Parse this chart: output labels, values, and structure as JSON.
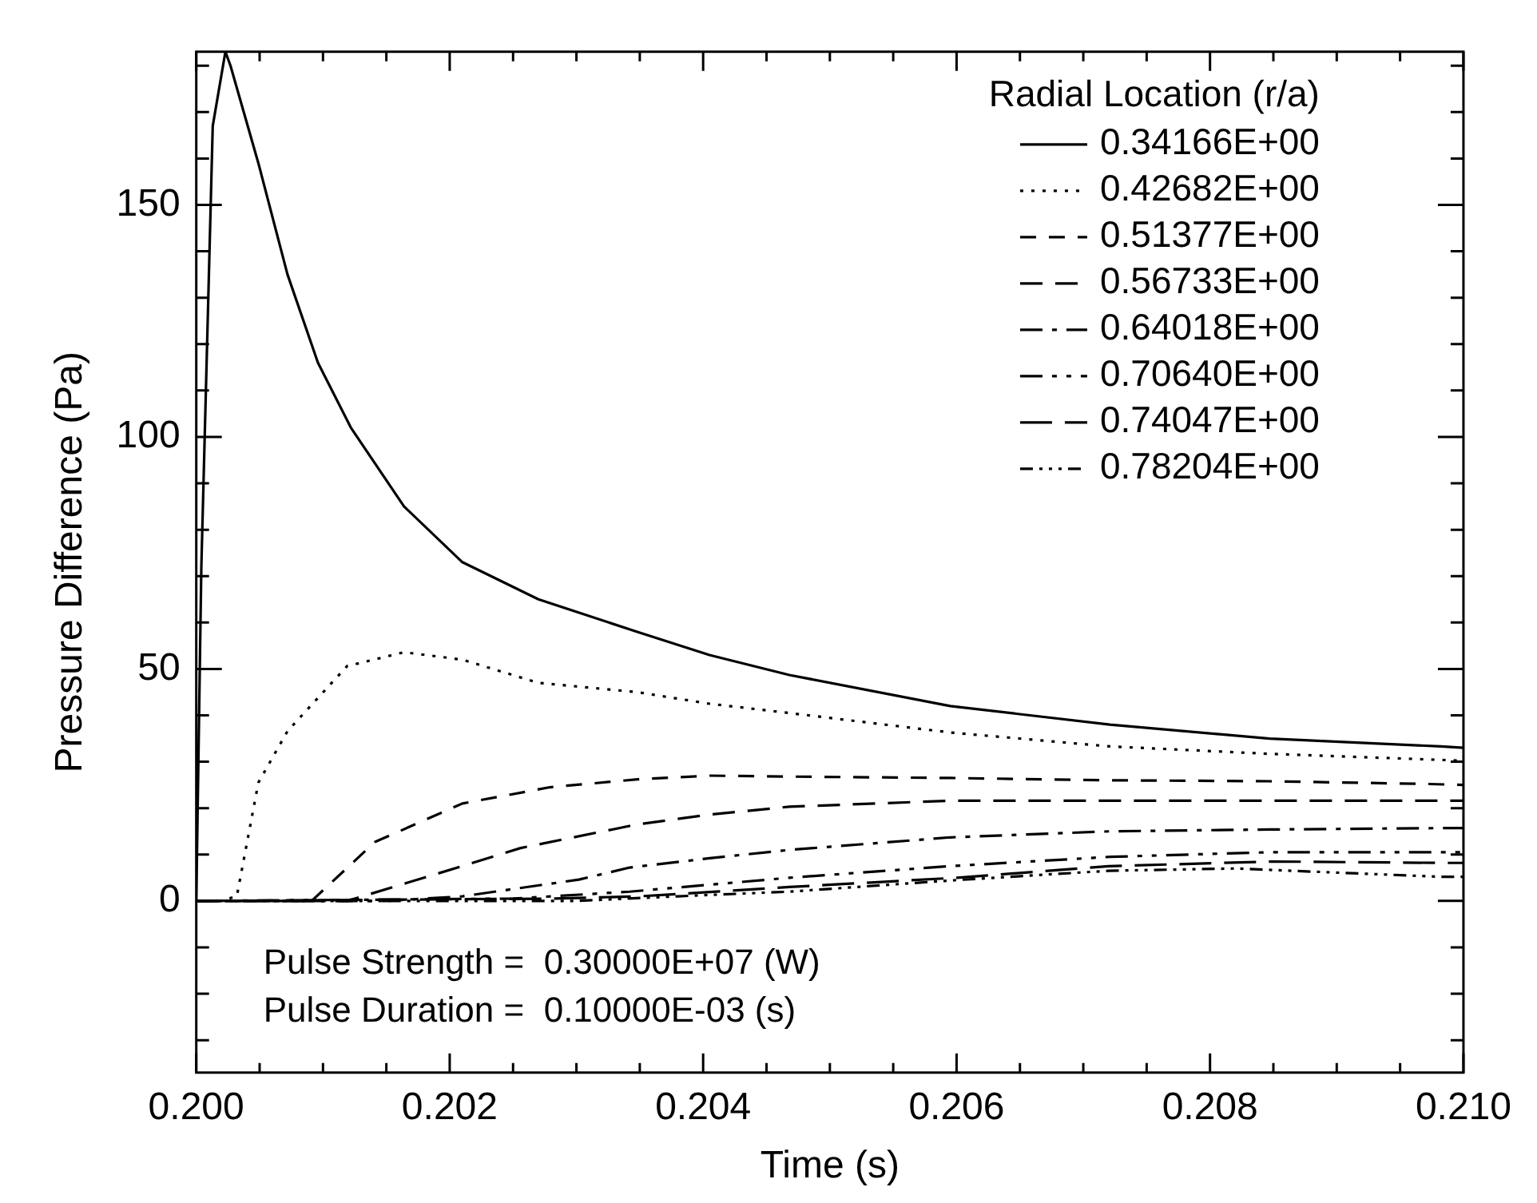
{
  "chart_data": {
    "type": "line",
    "xlabel": "Time (s)",
    "ylabel": "Pressure Difference (Pa)",
    "legend_title": "Radial Location (r/a)",
    "legend": "top right",
    "grid": false,
    "marker": "none",
    "xlim": [
      0.2,
      0.21
    ],
    "ylim": [
      -37,
      183
    ],
    "xticks": [
      {
        "value": 0.2,
        "label": "0.200"
      },
      {
        "value": 0.2005,
        "label": null
      },
      {
        "value": 0.201,
        "label": null
      },
      {
        "value": 0.2015,
        "label": null
      },
      {
        "value": 0.202,
        "label": "0.202"
      },
      {
        "value": 0.2025,
        "label": null
      },
      {
        "value": 0.203,
        "label": null
      },
      {
        "value": 0.2035,
        "label": null
      },
      {
        "value": 0.204,
        "label": "0.204"
      },
      {
        "value": 0.2045,
        "label": null
      },
      {
        "value": 0.205,
        "label": null
      },
      {
        "value": 0.2055,
        "label": null
      },
      {
        "value": 0.206,
        "label": "0.206"
      },
      {
        "value": 0.2065,
        "label": null
      },
      {
        "value": 0.207,
        "label": null
      },
      {
        "value": 0.2075,
        "label": null
      },
      {
        "value": 0.208,
        "label": "0.208"
      },
      {
        "value": 0.2085,
        "label": null
      },
      {
        "value": 0.209,
        "label": null
      },
      {
        "value": 0.2095,
        "label": null
      },
      {
        "value": 0.21,
        "label": "0.210"
      }
    ],
    "yticks": [
      {
        "value": -30,
        "label": null
      },
      {
        "value": -20,
        "label": null
      },
      {
        "value": -10,
        "label": null
      },
      0,
      {
        "value": 10,
        "label": null
      },
      {
        "value": 20,
        "label": null
      },
      {
        "value": 30,
        "label": null
      },
      {
        "value": 40,
        "label": null
      },
      50,
      {
        "value": 60,
        "label": null
      },
      {
        "value": 70,
        "label": null
      },
      {
        "value": 80,
        "label": null
      },
      {
        "value": 90,
        "label": null
      },
      100,
      {
        "value": 110,
        "label": null
      },
      {
        "value": 120,
        "label": null
      },
      {
        "value": 130,
        "label": null
      },
      {
        "value": 140,
        "label": null
      },
      150,
      {
        "value": 160,
        "label": null
      },
      {
        "value": 170,
        "label": null
      },
      {
        "value": 180,
        "label": null
      }
    ],
    "annotations": [
      "Pulse Strength =  0.30000E+07 (W)",
      "Pulse Duration =  0.10000E-03 (s)"
    ],
    "series": [
      {
        "name": "0.34166E+00",
        "color": "#000000",
        "line_style": "solid",
        "x": [
          0.2,
          0.20004,
          0.20013,
          0.20023,
          0.20027,
          0.20049,
          0.20072,
          0.20096,
          0.20122,
          0.20164,
          0.2021,
          0.2027,
          0.20348,
          0.20405,
          0.20468,
          0.20595,
          0.20721,
          0.20847,
          0.20982,
          0.21
        ],
        "values": [
          0,
          72,
          167,
          183,
          180,
          159,
          135,
          116,
          102,
          85,
          73,
          65,
          58,
          53,
          48.7,
          42,
          38,
          35,
          33.3,
          33
        ]
      },
      {
        "name": "0.42682E+00",
        "color": "#000000",
        "line_style": "dotted",
        "x": [
          0.2,
          0.20019,
          0.20032,
          0.20049,
          0.20072,
          0.20119,
          0.20164,
          0.2021,
          0.2027,
          0.20348,
          0.20405,
          0.20468,
          0.20595,
          0.20721,
          0.20847,
          0.20982,
          0.21
        ],
        "values": [
          0,
          0,
          1,
          25.5,
          36.6,
          50.6,
          53.6,
          52,
          47,
          45,
          42.5,
          40.5,
          36.3,
          33.3,
          31.7,
          30.4,
          30.2
        ]
      },
      {
        "name": "0.51377E+00",
        "color": "#000000",
        "line_style": "dashed",
        "x": [
          0.2,
          0.20091,
          0.20141,
          0.2021,
          0.20279,
          0.20348,
          0.20405,
          0.20468,
          0.20595,
          0.20721,
          0.20847,
          0.20973,
          0.21
        ],
        "values": [
          0,
          0,
          12.7,
          21,
          24.5,
          26.2,
          27,
          26.8,
          26.5,
          26,
          25.8,
          25.2,
          25
        ]
      },
      {
        "name": "0.56733E+00",
        "color": "#000000",
        "line_style": "dashed",
        "x": [
          0.2,
          0.20119,
          0.20187,
          0.20256,
          0.20348,
          0.20405,
          0.20468,
          0.20595,
          0.20721,
          0.20847,
          0.20982,
          0.21
        ],
        "values": [
          0,
          0,
          5.6,
          11.4,
          16.5,
          18.6,
          20.3,
          21.6,
          21.6,
          21.6,
          21.6,
          21.6
        ]
      },
      {
        "name": "0.64018E+00",
        "color": "#000000",
        "line_style": "dashed",
        "x": [
          0.2,
          0.2015,
          0.2021,
          0.20302,
          0.20342,
          0.20405,
          0.20468,
          0.20595,
          0.20721,
          0.20847,
          0.20982,
          0.21
        ],
        "values": [
          0,
          0,
          1,
          4.6,
          7.2,
          9.2,
          11,
          13.7,
          15,
          15.4,
          15.7,
          15.7
        ]
      },
      {
        "name": "0.70640E+00",
        "color": "#000000",
        "line_style": "dashed",
        "x": [
          0.2,
          0.2025,
          0.20342,
          0.20468,
          0.20595,
          0.20721,
          0.20847,
          0.20982,
          0.21
        ],
        "values": [
          0,
          0.5,
          2,
          5,
          7.5,
          9.5,
          10.5,
          10.5,
          10.5
        ]
      },
      {
        "name": "0.74047E+00",
        "color": "#000000",
        "line_style": "dashed",
        "x": [
          0.2,
          0.2028,
          0.2035,
          0.20468,
          0.206,
          0.2072,
          0.2085,
          0.20982,
          0.21
        ],
        "values": [
          0,
          0.5,
          1,
          3,
          5,
          7.5,
          8.5,
          8.2,
          8.2
        ]
      },
      {
        "name": "0.78204E+00",
        "color": "#000000",
        "line_style": "dashed",
        "x": [
          0.2,
          0.203,
          0.2038,
          0.20468,
          0.206,
          0.2072,
          0.2082,
          0.20982,
          0.21
        ],
        "values": [
          0,
          0,
          1,
          2,
          4.5,
          6.5,
          7,
          5.2,
          5.2
        ]
      }
    ]
  }
}
